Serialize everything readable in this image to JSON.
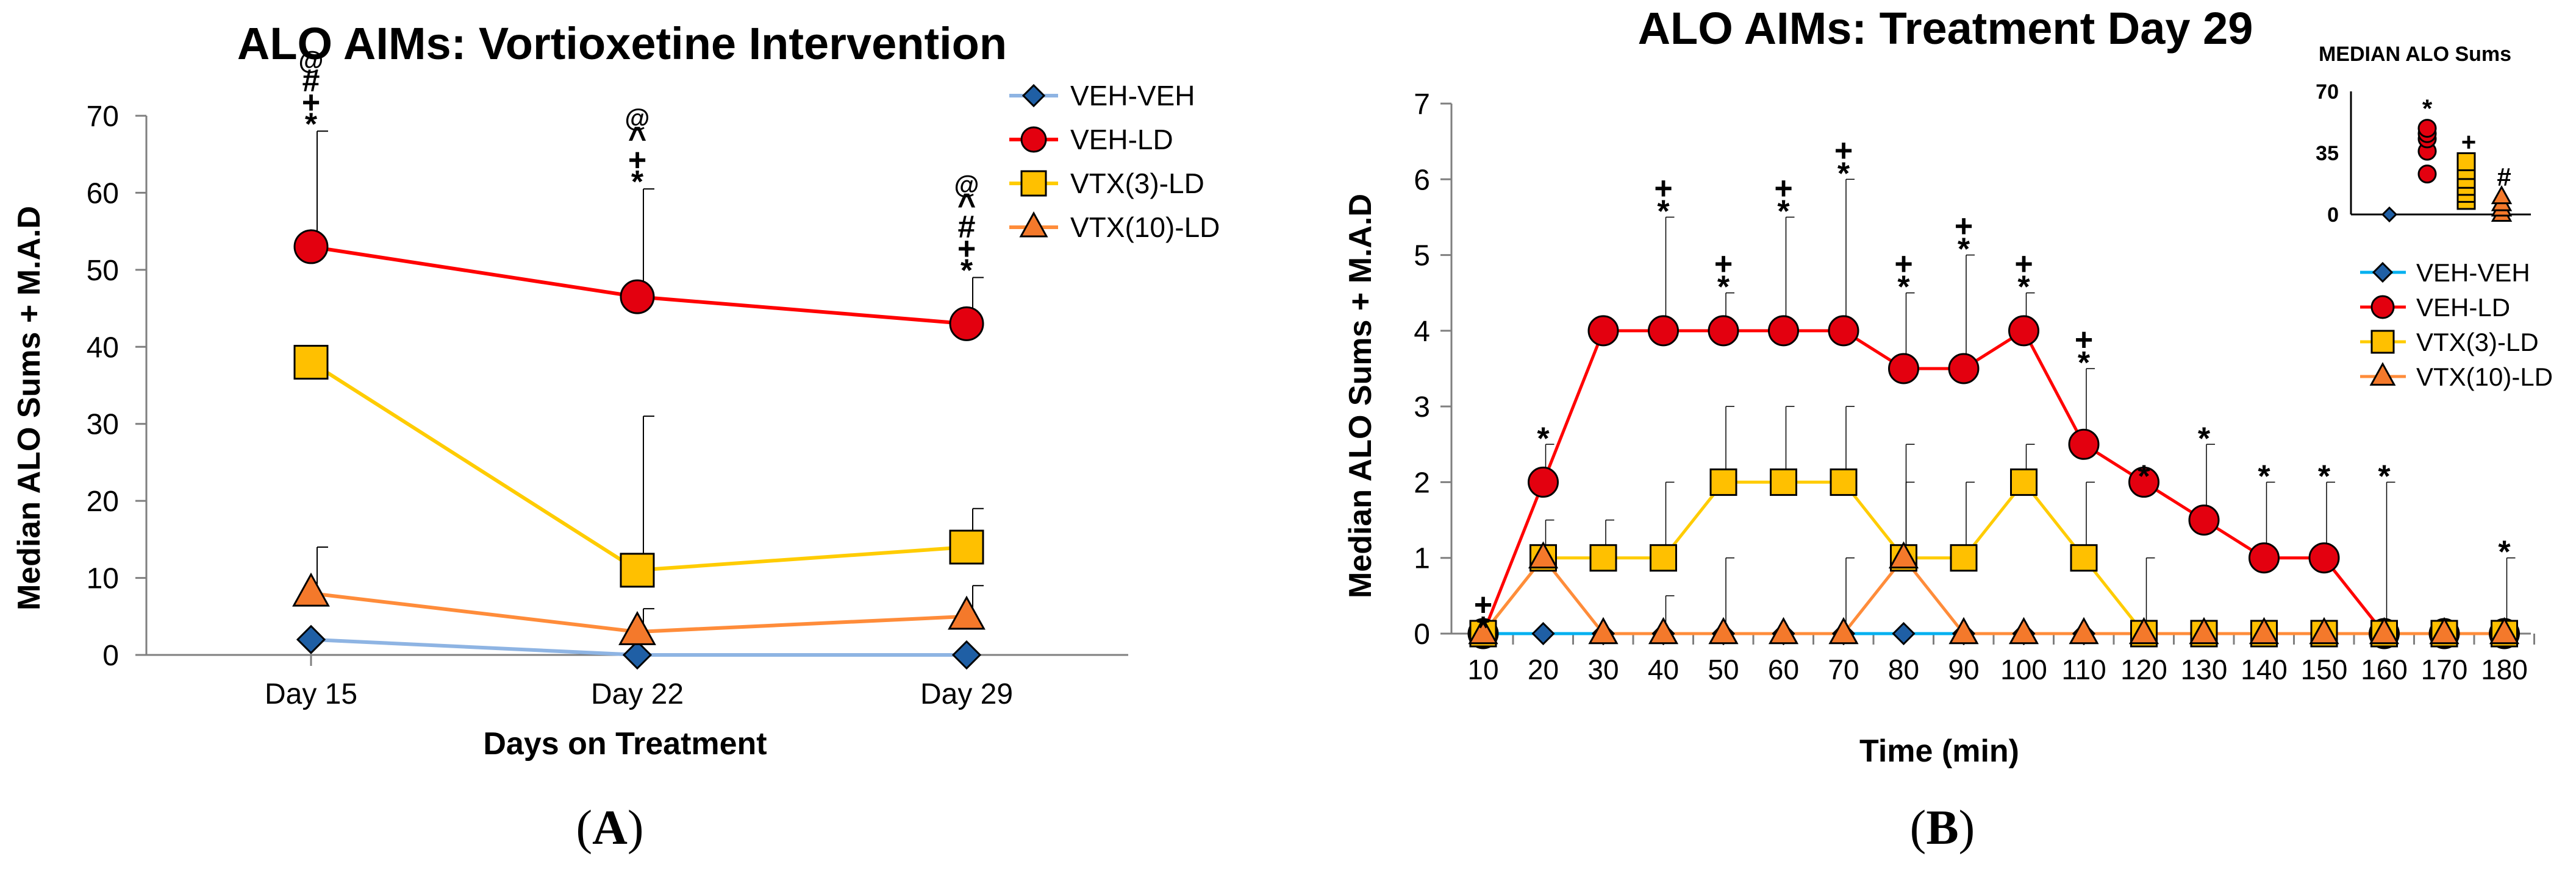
{
  "chart_data": [
    {
      "type": "line",
      "title": "ALO AIMs: Vortioxetine Intervention",
      "xlabel": "Days on Treatment",
      "ylabel": "Median ALO Sums + M.A.D",
      "panel_label": "(A)",
      "panel_letter": "A",
      "categories": [
        "Day 15",
        "Day 22",
        "Day 29"
      ],
      "ylim": [
        0,
        70
      ],
      "yticks": [
        "0",
        "10",
        "20",
        "30",
        "40",
        "50",
        "60",
        "70"
      ],
      "legend_position": "top-right",
      "series": [
        {
          "name": "VEH-VEH",
          "marker": "diamond",
          "color": "#8eb4e3",
          "fill": "#1f5fa5",
          "values": [
            2,
            0,
            0
          ],
          "err": [
            0,
            0,
            0
          ]
        },
        {
          "name": "VEH-LD",
          "marker": "circle",
          "color": "#ff0000",
          "fill": "#e3000f",
          "values": [
            53,
            46.5,
            43
          ],
          "err": [
            15,
            14,
            6
          ]
        },
        {
          "name": "VTX(3)-LD",
          "marker": "square",
          "color": "#ffcc00",
          "fill": "#ffc000",
          "values": [
            38,
            11,
            14
          ],
          "err": [
            0,
            20,
            5
          ]
        },
        {
          "name": "VTX(10)-LD",
          "marker": "triangle",
          "color": "#ff8c3a",
          "fill": "#f4792b",
          "values": [
            8,
            3,
            5
          ],
          "err": [
            6,
            3,
            4
          ]
        }
      ],
      "annotations": [
        {
          "category": "Day 15",
          "value": 68,
          "symbols": [
            "*",
            "+",
            "#",
            "@"
          ]
        },
        {
          "category": "Day 22",
          "value": 60.5,
          "symbols": [
            "*",
            "+",
            "^",
            "@"
          ]
        },
        {
          "category": "Day 29",
          "value": 49,
          "symbols": [
            "*",
            "+",
            "#",
            "^",
            "@"
          ]
        }
      ]
    },
    {
      "type": "line",
      "title": "ALO AIMs: Treatment Day 29",
      "xlabel": "Time (min)",
      "ylabel": "Median ALO Sums + M.A.D",
      "panel_label": "(B)",
      "panel_letter": "B",
      "x": [
        "10",
        "20",
        "30",
        "40",
        "50",
        "60",
        "70",
        "80",
        "90",
        "100",
        "110",
        "120",
        "130",
        "140",
        "150",
        "160",
        "170",
        "180"
      ],
      "ylim": [
        0,
        7
      ],
      "yticks": [
        "0",
        "1",
        "2",
        "3",
        "4",
        "5",
        "6",
        "7"
      ],
      "legend_position": "right",
      "series": [
        {
          "name": "VEH-VEH",
          "marker": "diamond",
          "color": "#00b0f0",
          "fill": "#1f5fa5",
          "values": [
            0,
            0,
            0,
            0,
            0,
            0,
            0,
            0,
            0,
            0,
            0,
            0,
            0,
            0,
            0,
            0,
            0,
            0
          ],
          "err": [
            0,
            0,
            0,
            0,
            0,
            0,
            0,
            0,
            0,
            0,
            0,
            0,
            0,
            0,
            0,
            0,
            0,
            0
          ]
        },
        {
          "name": "VEH-LD",
          "marker": "circle",
          "color": "#ff0000",
          "fill": "#e3000f",
          "values": [
            0,
            2,
            4,
            4,
            4,
            4,
            4,
            3.5,
            3.5,
            4,
            2.5,
            2,
            1.5,
            1,
            1,
            0,
            0,
            0
          ],
          "err": [
            0,
            0.5,
            0,
            1.5,
            0.5,
            1.5,
            2,
            1,
            1.5,
            0.5,
            1,
            0,
            1,
            1,
            1,
            2,
            0,
            1
          ]
        },
        {
          "name": "VTX(3)-LD",
          "marker": "square",
          "color": "#ffcc00",
          "fill": "#ffc000",
          "values": [
            0,
            1,
            1,
            1,
            2,
            2,
            2,
            1,
            1,
            2,
            1,
            0,
            0,
            0,
            0,
            0,
            0,
            0
          ],
          "err": [
            0,
            0.5,
            0.5,
            1,
            1,
            1,
            1,
            1.5,
            1,
            0.5,
            1,
            1,
            0,
            0,
            0,
            0,
            0,
            0
          ]
        },
        {
          "name": "VTX(10)-LD",
          "marker": "triangle",
          "color": "#ff8c3a",
          "fill": "#f4792b",
          "values": [
            0,
            1,
            0,
            0,
            0,
            0,
            0,
            1,
            0,
            0,
            0,
            0,
            0,
            0,
            0,
            0,
            0,
            0
          ],
          "err": [
            0,
            0,
            0,
            0.5,
            1,
            0,
            1,
            1,
            0,
            0,
            0,
            0,
            0,
            0,
            0,
            0,
            0,
            0
          ]
        }
      ],
      "annotations": [
        {
          "x": "10",
          "value": 0,
          "symbols": [
            "*",
            "+"
          ]
        },
        {
          "x": "20",
          "value": 2.5,
          "symbols": [
            "*"
          ]
        },
        {
          "x": "40",
          "value": 5.5,
          "symbols": [
            "*",
            "+"
          ]
        },
        {
          "x": "50",
          "value": 4.5,
          "symbols": [
            "*",
            "+"
          ]
        },
        {
          "x": "60",
          "value": 5.5,
          "symbols": [
            "*",
            "+"
          ]
        },
        {
          "x": "70",
          "value": 6,
          "symbols": [
            "*",
            "+"
          ]
        },
        {
          "x": "80",
          "value": 4.5,
          "symbols": [
            "*",
            "+"
          ]
        },
        {
          "x": "90",
          "value": 5,
          "symbols": [
            "*",
            "+"
          ]
        },
        {
          "x": "100",
          "value": 4.5,
          "symbols": [
            "*",
            "+"
          ]
        },
        {
          "x": "110",
          "value": 3.5,
          "symbols": [
            "*",
            "+"
          ]
        },
        {
          "x": "120",
          "value": 2,
          "symbols": [
            "*"
          ]
        },
        {
          "x": "130",
          "value": 2.5,
          "symbols": [
            "*"
          ]
        },
        {
          "x": "140",
          "value": 2,
          "symbols": [
            "*"
          ]
        },
        {
          "x": "150",
          "value": 2,
          "symbols": [
            "*"
          ]
        },
        {
          "x": "160",
          "value": 2,
          "symbols": [
            "*"
          ]
        },
        {
          "x": "180",
          "value": 1,
          "symbols": [
            "*"
          ]
        }
      ],
      "inset": {
        "type": "scatter",
        "title": "MEDIAN ALO Sums",
        "ylim": [
          0,
          70
        ],
        "yticks": [
          "0",
          "35",
          "70"
        ],
        "groups": [
          {
            "name": "VEH-VEH",
            "marker": "diamond",
            "fill": "#1f5fa5",
            "points": [
              0
            ],
            "symbol": ""
          },
          {
            "name": "VEH-LD",
            "marker": "circle",
            "fill": "#e3000f",
            "points": [
              23,
              36,
              43,
              46,
              49
            ],
            "symbol": "*"
          },
          {
            "name": "VTX(3)-LD",
            "marker": "square",
            "fill": "#ffc000",
            "points": [
              8,
              12,
              16,
              20,
              25,
              30
            ],
            "symbol": "+"
          },
          {
            "name": "VTX(10)-LD",
            "marker": "triangle",
            "fill": "#f4792b",
            "points": [
              0,
              3,
              6,
              10
            ],
            "symbol": "#"
          }
        ]
      }
    }
  ]
}
